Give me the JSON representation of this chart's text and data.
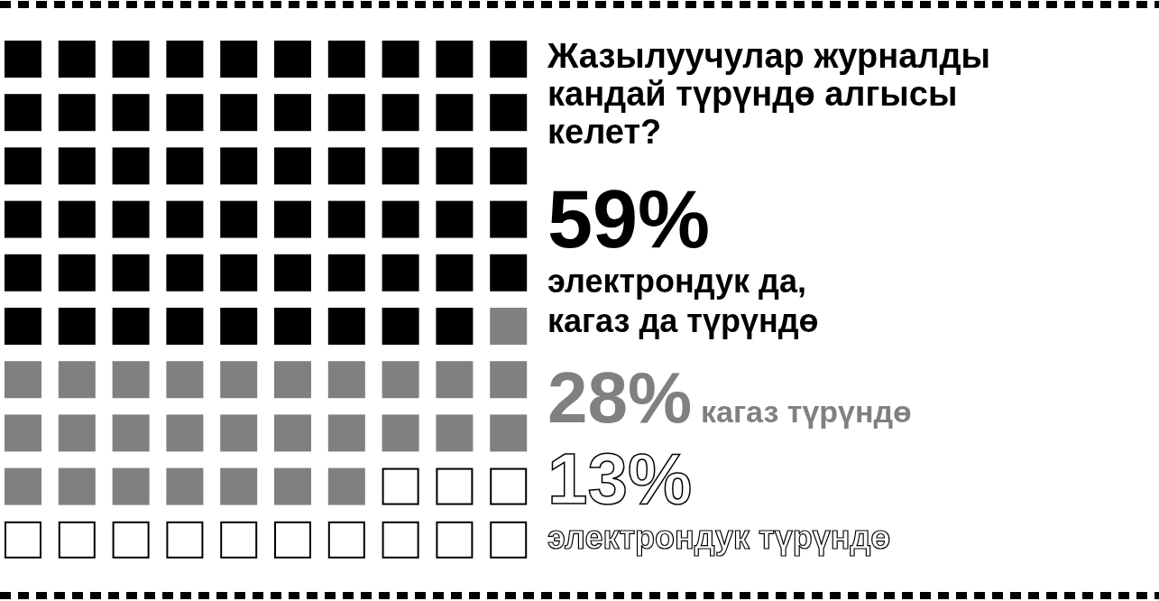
{
  "chart_data": {
    "type": "other",
    "title": "Жазылуучулар журналды кандай түрүндө алгысы келет?",
    "categories": [
      "электрондук да, кагаз да түрүндө",
      "кагаз түрүндө",
      "электрондук түрүндө"
    ],
    "values": [
      59,
      28,
      13
    ],
    "colors": [
      "#000000",
      "#808080",
      "#ffffff"
    ],
    "value_labels": [
      "59%",
      "28%",
      "13%"
    ]
  }
}
